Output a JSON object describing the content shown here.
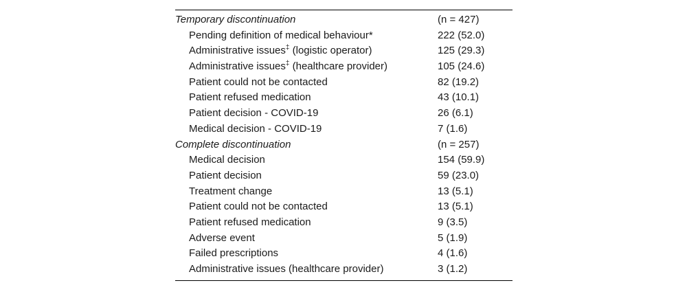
{
  "table": {
    "rows": [
      {
        "type": "section",
        "pre": "Temporary discontinuation",
        "sup": "",
        "post": "",
        "value": "(n = 427)"
      },
      {
        "type": "item",
        "pre": "Pending definition of medical behaviour*",
        "sup": "",
        "post": "",
        "value": "222 (52.0)"
      },
      {
        "type": "item",
        "pre": "Administrative issues",
        "sup": "‡",
        "post": " (logistic operator)",
        "value": "125 (29.3)"
      },
      {
        "type": "item",
        "pre": "Administrative issues",
        "sup": "‡",
        "post": " (healthcare provider)",
        "value": "105 (24.6)"
      },
      {
        "type": "item",
        "pre": "Patient could not be contacted",
        "sup": "",
        "post": "",
        "value": "82 (19.2)"
      },
      {
        "type": "item",
        "pre": "Patient refused medication",
        "sup": "",
        "post": "",
        "value": "43 (10.1)"
      },
      {
        "type": "item",
        "pre": "Patient decision - COVID-19",
        "sup": "",
        "post": "",
        "value": "26 (6.1)"
      },
      {
        "type": "item",
        "pre": "Medical decision - COVID-19",
        "sup": "",
        "post": "",
        "value": "7 (1.6)"
      },
      {
        "type": "section",
        "pre": "Complete discontinuation",
        "sup": "",
        "post": "",
        "value": "(n = 257)"
      },
      {
        "type": "item",
        "pre": "Medical decision",
        "sup": "",
        "post": "",
        "value": "154 (59.9)"
      },
      {
        "type": "item",
        "pre": "Patient decision",
        "sup": "",
        "post": "",
        "value": "59 (23.0)"
      },
      {
        "type": "item",
        "pre": "Treatment change",
        "sup": "",
        "post": "",
        "value": "13 (5.1)"
      },
      {
        "type": "item",
        "pre": "Patient could not be contacted",
        "sup": "",
        "post": "",
        "value": "13 (5.1)"
      },
      {
        "type": "item",
        "pre": "Patient refused medication",
        "sup": "",
        "post": "",
        "value": "9 (3.5)"
      },
      {
        "type": "item",
        "pre": "Adverse event",
        "sup": "",
        "post": "",
        "value": "5 (1.9)"
      },
      {
        "type": "item",
        "pre": "Failed prescriptions",
        "sup": "",
        "post": "",
        "value": "4 (1.6)"
      },
      {
        "type": "item",
        "pre": "Administrative issues (healthcare provider)",
        "sup": "",
        "post": "",
        "value": "3 (1.2)"
      }
    ]
  }
}
